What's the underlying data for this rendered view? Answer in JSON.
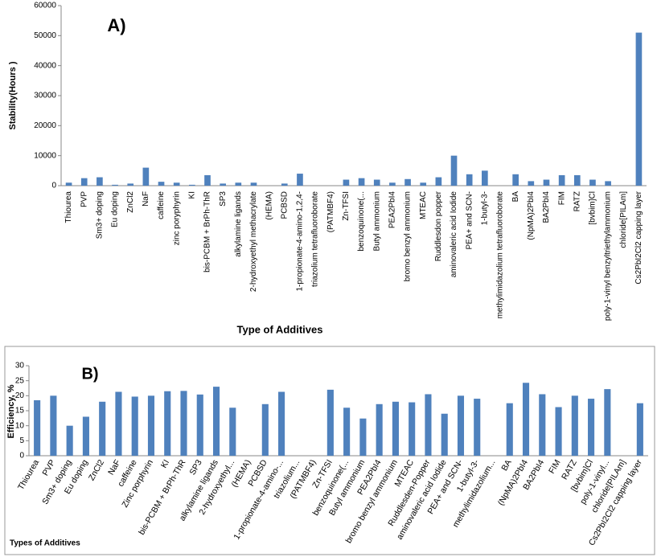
{
  "chart_data": [
    {
      "type": "bar",
      "title": "A)",
      "y_label": "Stability(Hours )",
      "x_label": "Type of Additives",
      "color": "#4f81bd",
      "categories": [
        "Thiourea",
        "PVP",
        "Sm3+ doping",
        "Eu doping",
        "ZnCl2",
        "NaF",
        "caffeine",
        "zinc poryphyrin",
        "KI",
        "bis-PCBM + BrPh-ThR",
        "SP3",
        "alkylamine ligands",
        "2-hydroxyethyl methacrylate",
        "(HEMA)",
        "PCBSD",
        "1-propionate-4-amino-1,2,4-",
        "triazolium tetrafluoroborate",
        "(PATMBF4)",
        "Zn-TFSI",
        "benzoquinone(...",
        "Butyl ammonium",
        "PEA2PbI4",
        "bromo benzyl ammonium",
        "MTEAC",
        "Ruddlesdon popper",
        "aminovaleric acid Iodide",
        "PEA+ and SCN-",
        "1-butyl-3-",
        "methylimidazolium tetrafluoroborate",
        "BA",
        "(NpMA)2PbI4",
        "BA2PbI4",
        "FIM",
        "RATZ",
        "[bvbim]Cl",
        "poly-1-vinyl benzyltriethylammonium",
        "chloride[PILAm]",
        "Cs2PbI2Cl2 capping layer"
      ],
      "values": [
        1000,
        2500,
        2800,
        300,
        700,
        6000,
        1300,
        1000,
        300,
        3500,
        700,
        1000,
        1000,
        null,
        700,
        4000,
        null,
        null,
        2000,
        2500,
        2000,
        1000,
        2200,
        1000,
        2800,
        10000,
        3800,
        5000,
        null,
        3800,
        1500,
        2000,
        3500,
        3500,
        2000,
        1500,
        null,
        51000
      ],
      "ylim": [
        0,
        60000
      ],
      "yticks": [
        0,
        10000,
        20000,
        30000,
        40000,
        50000,
        60000
      ],
      "grid": false,
      "frame": false
    },
    {
      "type": "bar",
      "title": "B)",
      "y_label": "Efficiency, %",
      "x_label": "Types of Additives",
      "color": "#4f81bd",
      "categories": [
        "Thiourea",
        "PVP",
        "Sm3+ doping",
        "Eu doping",
        "ZnCl2",
        "NaF",
        "caffeine",
        "Zinc porphyrin",
        "KI",
        "bis-PCBM + BrPh-ThR",
        "SP3",
        "alkylamine ligands",
        "2-hydroxyethyl...",
        "(HEMA)",
        "PCBSD",
        "1-propionate-4-amino-...",
        "triazolium...",
        "(PATMBF4)",
        "Zn-TFSI",
        "benzoquinone(...",
        "Butyl ammonium",
        "PEA2PbI4",
        "bromo benzyl ammonium",
        "MTEAC",
        "Ruddlesden-Popper",
        "aminovaleric acid Iodide",
        "PEA+ and SCN-",
        "1-butyl-3-",
        "methylimidazolium...",
        "BA",
        "(NpMA)2PbI4",
        "BA2PbI4",
        "FIM",
        "RATZ",
        "[bvbim]Cl",
        "poly-1-vinyl...",
        "chloride[PILAm]",
        "Cs2PbI2Cl2 capping layer"
      ],
      "values": [
        18.5,
        20,
        10,
        13,
        18,
        21.3,
        19.7,
        20,
        21.5,
        21.6,
        20.4,
        23,
        16,
        null,
        17.2,
        21.3,
        null,
        null,
        22,
        16,
        12.4,
        17.2,
        18,
        17.8,
        20.5,
        14,
        20,
        19,
        null,
        17.5,
        24.3,
        20.5,
        16.2,
        20,
        19,
        22.2,
        null,
        17.5
      ],
      "ylim": [
        0,
        30
      ],
      "yticks": [
        0,
        5,
        10,
        15,
        20,
        25,
        30
      ],
      "grid": false,
      "frame": true
    }
  ]
}
